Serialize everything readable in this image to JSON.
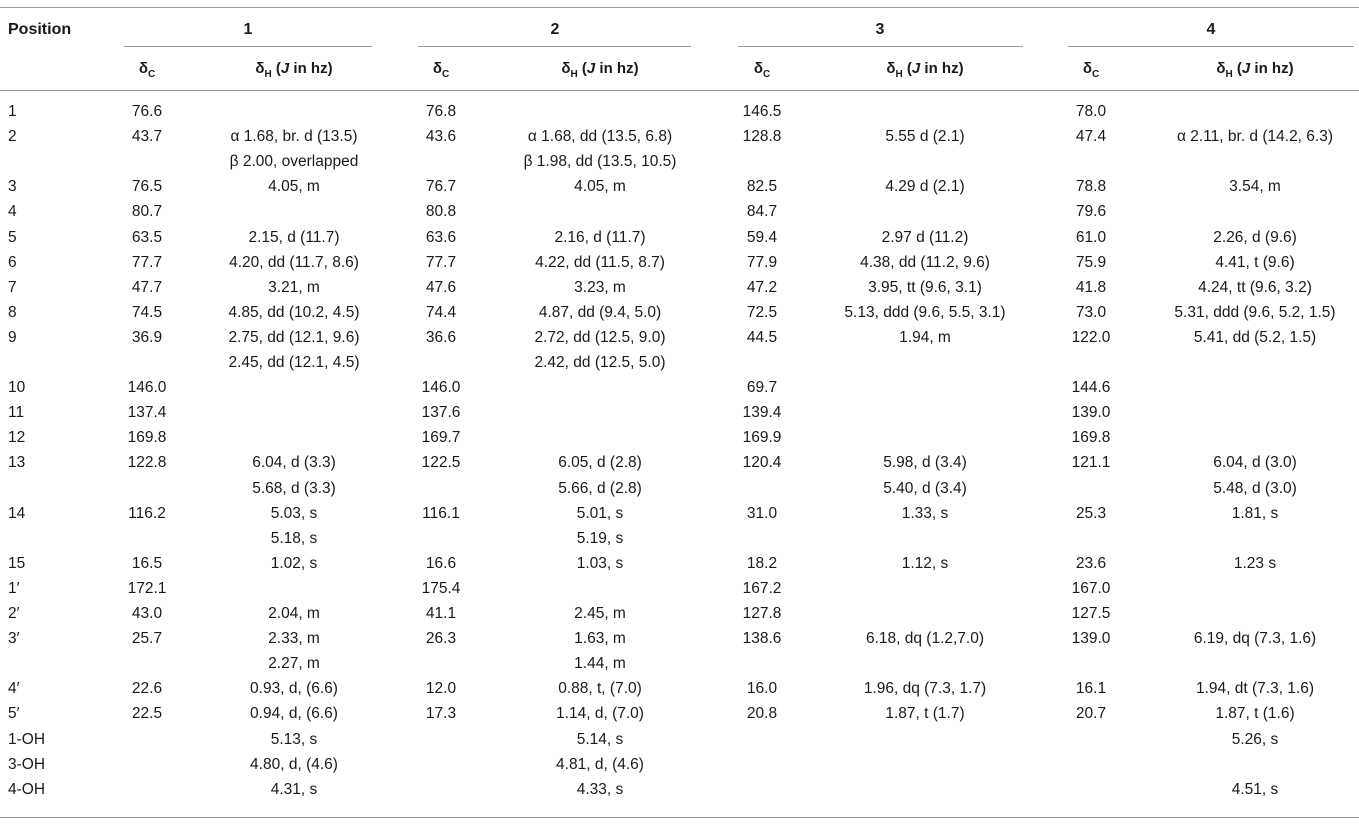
{
  "header": {
    "position": "Position",
    "compounds": [
      "1",
      "2",
      "3",
      "4"
    ],
    "delta_c": {
      "symbol": "δ",
      "subscript": "C"
    },
    "delta_h": {
      "symbol": "δ",
      "subscript": "H",
      "j_prefix": " (",
      "j": "J",
      "j_suffix": " in hz)"
    }
  },
  "rows": [
    {
      "pos": "1",
      "c": [
        "76.6",
        "76.8",
        "146.5",
        "78.0"
      ],
      "h": [
        [],
        [],
        [],
        []
      ]
    },
    {
      "pos": "2",
      "c": [
        "43.7",
        "43.6",
        "128.8",
        "47.4"
      ],
      "h": [
        [
          "α 1.68, br. d (13.5)",
          "β 2.00, overlapped"
        ],
        [
          "α 1.68, dd (13.5, 6.8)",
          "β 1.98, dd (13.5, 10.5)"
        ],
        [
          "5.55 d (2.1)"
        ],
        [
          "α 2.11, br. d (14.2, 6.3)"
        ]
      ]
    },
    {
      "pos": "3",
      "c": [
        "76.5",
        "76.7",
        "82.5",
        "78.8"
      ],
      "h": [
        [
          "4.05, m"
        ],
        [
          "4.05, m"
        ],
        [
          "4.29 d (2.1)"
        ],
        [
          "3.54, m"
        ]
      ]
    },
    {
      "pos": "4",
      "c": [
        "80.7",
        "80.8",
        "84.7",
        "79.6"
      ],
      "h": [
        [],
        [],
        [],
        []
      ]
    },
    {
      "pos": "5",
      "c": [
        "63.5",
        "63.6",
        "59.4",
        "61.0"
      ],
      "h": [
        [
          "2.15, d (11.7)"
        ],
        [
          "2.16, d (11.7)"
        ],
        [
          "2.97 d (11.2)"
        ],
        [
          "2.26, d (9.6)"
        ]
      ]
    },
    {
      "pos": "6",
      "c": [
        "77.7",
        "77.7",
        "77.9",
        "75.9"
      ],
      "h": [
        [
          "4.20, dd (11.7, 8.6)"
        ],
        [
          "4.22, dd (11.5, 8.7)"
        ],
        [
          "4.38, dd (11.2, 9.6)"
        ],
        [
          "4.41, t (9.6)"
        ]
      ]
    },
    {
      "pos": "7",
      "c": [
        "47.7",
        "47.6",
        "47.2",
        "41.8"
      ],
      "h": [
        [
          "3.21, m"
        ],
        [
          "3.23, m"
        ],
        [
          "3.95, tt (9.6, 3.1)"
        ],
        [
          "4.24, tt (9.6, 3.2)"
        ]
      ]
    },
    {
      "pos": "8",
      "c": [
        "74.5",
        "74.4",
        "72.5",
        "73.0"
      ],
      "h": [
        [
          "4.85, dd (10.2, 4.5)"
        ],
        [
          "4.87, dd (9.4, 5.0)"
        ],
        [
          "5.13, ddd (9.6, 5.5, 3.1)"
        ],
        [
          "5.31, ddd (9.6, 5.2, 1.5)"
        ]
      ]
    },
    {
      "pos": "9",
      "c": [
        "36.9",
        "36.6",
        "44.5",
        "122.0"
      ],
      "h": [
        [
          "2.75, dd (12.1, 9.6)",
          "2.45, dd (12.1, 4.5)"
        ],
        [
          "2.72, dd (12.5, 9.0)",
          "2.42, dd (12.5, 5.0)"
        ],
        [
          "1.94, m"
        ],
        [
          "5.41, dd (5.2, 1.5)"
        ]
      ]
    },
    {
      "pos": "10",
      "c": [
        "146.0",
        "146.0",
        "69.7",
        "144.6"
      ],
      "h": [
        [],
        [],
        [],
        []
      ]
    },
    {
      "pos": "11",
      "c": [
        "137.4",
        "137.6",
        "139.4",
        "139.0"
      ],
      "h": [
        [],
        [],
        [],
        []
      ]
    },
    {
      "pos": "12",
      "c": [
        "169.8",
        "169.7",
        "169.9",
        "169.8"
      ],
      "h": [
        [],
        [],
        [],
        []
      ]
    },
    {
      "pos": "13",
      "c": [
        "122.8",
        "122.5",
        "120.4",
        "121.1"
      ],
      "h": [
        [
          "6.04, d (3.3)",
          "5.68, d (3.3)"
        ],
        [
          "6.05, d (2.8)",
          "5.66, d (2.8)"
        ],
        [
          "5.98, d (3.4)",
          "5.40, d (3.4)"
        ],
        [
          "6.04, d (3.0)",
          "5.48, d (3.0)"
        ]
      ]
    },
    {
      "pos": "14",
      "c": [
        "116.2",
        "116.1",
        "31.0",
        "25.3"
      ],
      "h": [
        [
          "5.03, s",
          "5.18, s"
        ],
        [
          "5.01, s",
          "5.19, s"
        ],
        [
          "1.33, s"
        ],
        [
          "1.81, s"
        ]
      ]
    },
    {
      "pos": "15",
      "c": [
        "16.5",
        "16.6",
        "18.2",
        "23.6"
      ],
      "h": [
        [
          "1.02, s"
        ],
        [
          "1.03, s"
        ],
        [
          "1.12, s"
        ],
        [
          "1.23 s"
        ]
      ]
    },
    {
      "pos": "1′",
      "c": [
        "172.1",
        "175.4",
        "167.2",
        "167.0"
      ],
      "h": [
        [],
        [],
        [],
        []
      ]
    },
    {
      "pos": "2′",
      "c": [
        "43.0",
        "41.1",
        "127.8",
        "127.5"
      ],
      "h": [
        [
          "2.04, m"
        ],
        [
          "2.45, m"
        ],
        [],
        []
      ]
    },
    {
      "pos": "3′",
      "c": [
        "25.7",
        "26.3",
        "138.6",
        "139.0"
      ],
      "h": [
        [
          "2.33, m",
          "2.27, m"
        ],
        [
          "1.63, m",
          "1.44, m"
        ],
        [
          "6.18, dq (1.2,7.0)"
        ],
        [
          "6.19, dq (7.3, 1.6)"
        ]
      ]
    },
    {
      "pos": "4′",
      "c": [
        "22.6",
        "12.0",
        "16.0",
        "16.1"
      ],
      "h": [
        [
          "0.93, d, (6.6)"
        ],
        [
          "0.88, t, (7.0)"
        ],
        [
          "1.96, dq (7.3, 1.7)"
        ],
        [
          "1.94, dt (7.3, 1.6)"
        ]
      ]
    },
    {
      "pos": "5′",
      "c": [
        "22.5",
        "17.3",
        "20.8",
        "20.7"
      ],
      "h": [
        [
          "0.94, d, (6.6)"
        ],
        [
          "1.14, d, (7.0)"
        ],
        [
          "1.87, t (1.7)"
        ],
        [
          "1.87, t (1.6)"
        ]
      ]
    },
    {
      "pos": "1-OH",
      "c": [
        "",
        "",
        "",
        ""
      ],
      "h": [
        [
          "5.13, s"
        ],
        [
          "5.14, s"
        ],
        [],
        [
          "5.26, s"
        ]
      ]
    },
    {
      "pos": "3-OH",
      "c": [
        "",
        "",
        "",
        ""
      ],
      "h": [
        [
          "4.80, d, (4.6)"
        ],
        [
          "4.81, d, (4.6)"
        ],
        [],
        []
      ]
    },
    {
      "pos": "4-OH",
      "c": [
        "",
        "",
        "",
        ""
      ],
      "h": [
        [
          "4.31, s"
        ],
        [
          "4.33, s"
        ],
        [],
        [
          "4.51, s"
        ]
      ]
    }
  ]
}
